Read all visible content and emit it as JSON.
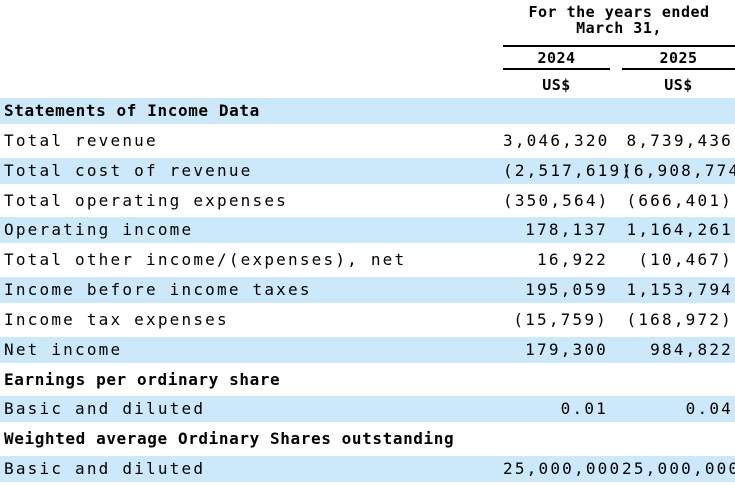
{
  "colors": {
    "stripe": "#cbe9fa",
    "text": "#000000",
    "background": "#ffffff",
    "rule": "#000000"
  },
  "header": {
    "period_line1": "For the years ended",
    "period_line2": "March 31,",
    "columns": [
      {
        "year": "2024",
        "unit": "US$"
      },
      {
        "year": "2025",
        "unit": "US$"
      }
    ]
  },
  "table": {
    "rows": [
      {
        "label": "Statements of Income Data",
        "v2024": "",
        "v2025": "",
        "section": true
      },
      {
        "label": "Total revenue",
        "v2024": "3,046,320",
        "v2025": "8,739,436",
        "section": false
      },
      {
        "label": "Total cost of revenue",
        "v2024": "(2,517,619)",
        "v2025": "(6,908,774)",
        "section": false
      },
      {
        "label": "Total operating expenses",
        "v2024": "(350,564)",
        "v2025": "(666,401)",
        "section": false
      },
      {
        "label": "Operating income",
        "v2024": "178,137",
        "v2025": "1,164,261",
        "section": false
      },
      {
        "label": "Total other income/(expenses), net",
        "v2024": "16,922",
        "v2025": "(10,467)",
        "section": false
      },
      {
        "label": "Income before income taxes",
        "v2024": "195,059",
        "v2025": "1,153,794",
        "section": false
      },
      {
        "label": "Income tax expenses",
        "v2024": "(15,759)",
        "v2025": "(168,972)",
        "section": false
      },
      {
        "label": "Net income",
        "v2024": "179,300",
        "v2025": "984,822",
        "section": false
      },
      {
        "label": "Earnings per ordinary share",
        "v2024": "",
        "v2025": "",
        "section": true
      },
      {
        "label": "Basic and diluted",
        "v2024": "0.01",
        "v2025": "0.04",
        "section": false
      },
      {
        "label": "Weighted average Ordinary Shares outstanding",
        "v2024": "",
        "v2025": "",
        "section": true
      },
      {
        "label": "Basic and diluted",
        "v2024": "25,000,000",
        "v2025": "25,000,000",
        "section": false
      }
    ]
  }
}
